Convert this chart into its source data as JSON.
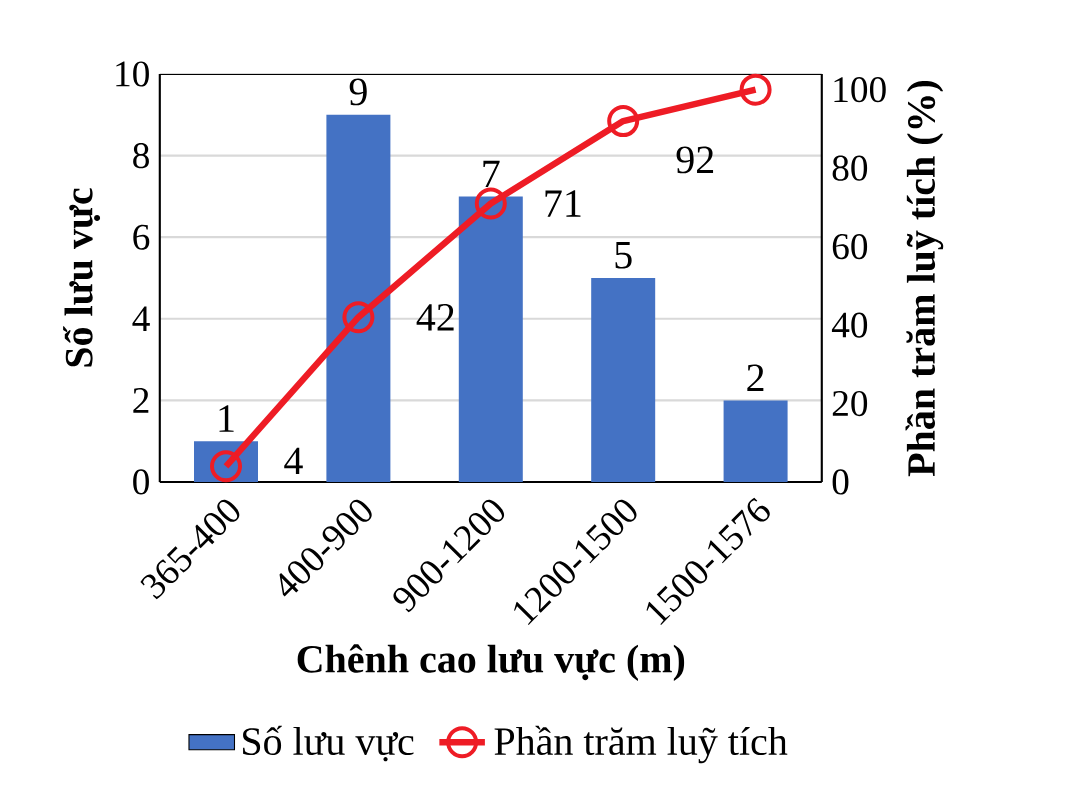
{
  "chart_data": {
    "type": "bar",
    "xlabel": "Chênh cao lưu vực (m)",
    "ylabel": "Số lưu vực",
    "y2label": "Phần trăm luỹ tích (%)",
    "categories": [
      "365-400",
      "400-900",
      "900-1200",
      "1200-1500",
      "1500-1576"
    ],
    "series": [
      {
        "name": "Số lưu vực",
        "color": "#4472c4",
        "values": [
          1,
          9,
          7,
          5,
          2
        ],
        "value_labels": [
          "1",
          "9",
          "7",
          "5",
          "2"
        ]
      },
      {
        "name": "Phần trăm luỹ tích",
        "type": "line",
        "axis": "y2",
        "color": "#ee1c25",
        "marker": "circle",
        "values": [
          4,
          42,
          71,
          92,
          100
        ],
        "value_labels": [
          "4",
          "42",
          "71",
          "92",
          null
        ]
      }
    ],
    "ylim": [
      0,
      10
    ],
    "yticks": [
      0,
      2,
      4,
      6,
      8,
      10
    ],
    "y2lim": [
      0,
      104
    ],
    "y2ticks": [
      0,
      20,
      40,
      60,
      80,
      100
    ],
    "grid": "y",
    "legend": "bottom"
  }
}
